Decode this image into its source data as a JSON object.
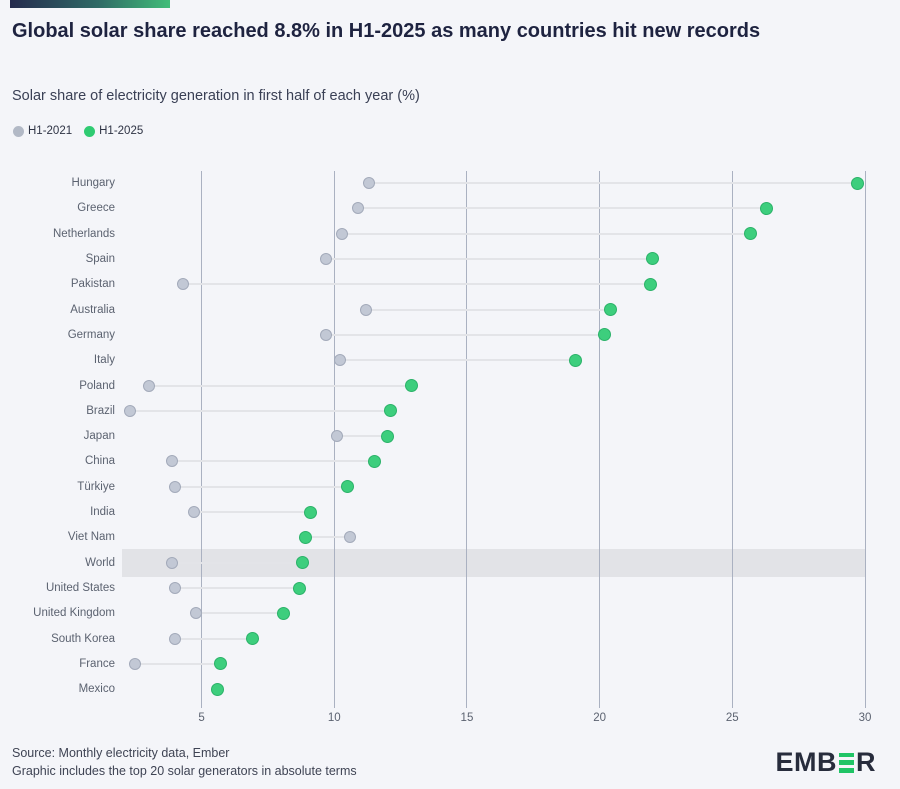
{
  "accent_bar": {
    "color_from": "#252b4e",
    "color_to": "#41bd79"
  },
  "chart_data": {
    "type": "scatter",
    "variant": "dumbbell-dot-plot",
    "title": "Global solar share reached 8.8% in H1-2025 as many countries hit new records",
    "subtitle": "Solar share of electricity generation in first half of each year (%)",
    "unit": "%",
    "legend": [
      {
        "label": "H1-2021",
        "color": "#b2b9c6"
      },
      {
        "label": "H1-2025",
        "color": "#2fcb72"
      }
    ],
    "legend_position": "top-left",
    "categories": [
      "Hungary",
      "Greece",
      "Netherlands",
      "Spain",
      "Pakistan",
      "Australia",
      "Germany",
      "Italy",
      "Poland",
      "Brazil",
      "Japan",
      "China",
      "Türkiye",
      "India",
      "Viet Nam",
      "World",
      "United States",
      "United Kingdom",
      "South Korea",
      "France",
      "Mexico"
    ],
    "highlight_category": "World",
    "series": [
      {
        "name": "H1-2021",
        "color": "#c2c8d5",
        "values": [
          11.3,
          10.9,
          10.3,
          9.7,
          4.3,
          11.2,
          9.7,
          10.2,
          3.0,
          2.3,
          10.1,
          3.9,
          4.0,
          4.7,
          10.6,
          3.9,
          4.0,
          4.8,
          4.0,
          2.5,
          null
        ]
      },
      {
        "name": "H1-2025",
        "color": "#3dce7d",
        "values": [
          29.7,
          26.3,
          25.7,
          22.0,
          21.9,
          20.4,
          20.2,
          19.1,
          12.9,
          12.1,
          12.0,
          11.5,
          10.5,
          9.1,
          8.9,
          8.8,
          8.7,
          8.1,
          6.9,
          5.7,
          5.6
        ]
      }
    ],
    "x_axis": {
      "min": 2,
      "max": 30,
      "ticks": [
        5,
        10,
        15,
        20,
        25,
        30
      ],
      "grid": true
    },
    "grid_color": "#aab1c1",
    "highlight_band_color": "#e2e3e7"
  },
  "footer": {
    "line1": "Source: Monthly electricity data, Ember",
    "line2": "Graphic includes the top 20 solar generators in absolute terms"
  },
  "logo": {
    "prefix": "EMB",
    "suffix": "R",
    "green_letter": "E"
  }
}
